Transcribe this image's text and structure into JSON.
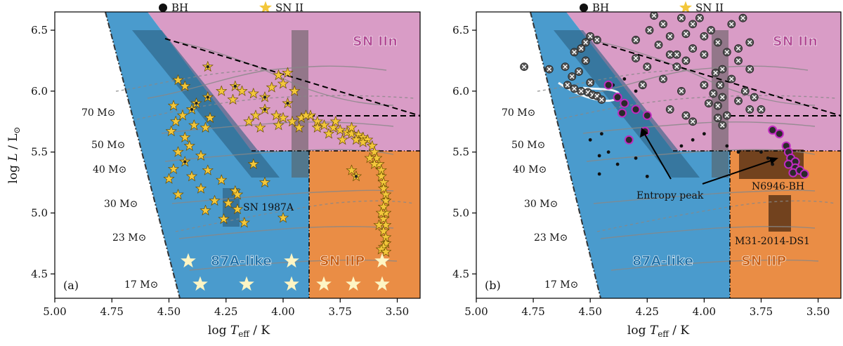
{
  "legend": {
    "bh": "BH",
    "sn": "SN II"
  },
  "colors": {
    "iin": "#d99cc6",
    "iip": "#ea8d45",
    "blue": "#4a9bcd",
    "bandDark": "#2c5f80",
    "star": "#f3c73b",
    "starEdge": "#6b4e00",
    "white_star": "#fdf5c4",
    "bh": "#111111",
    "bhWhite": "#555555",
    "magenta": "#c02bc0"
  },
  "chart_data": [
    {
      "type": "scatter",
      "panel_label": "(a)",
      "xlabel": "log T_eff / K",
      "ylabel": "log L / L⊙",
      "xlim": [
        5.0,
        3.4
      ],
      "ylim": [
        4.3,
        6.65
      ],
      "xticks": [
        "5.00",
        "4.75",
        "4.50",
        "4.25",
        "4.00",
        "3.75",
        "3.50"
      ],
      "yticks": [
        "4.5",
        "5.0",
        "5.5",
        "6.0",
        "6.5"
      ],
      "regions": [
        "SN IIn",
        "87A-like",
        "SN IIP"
      ],
      "track_masses": [
        "70 M⊙",
        "50 M⊙",
        "40 M⊙",
        "30 M⊙",
        "23 M⊙",
        "17 M⊙"
      ],
      "annotations": [
        "SN 1987A"
      ],
      "series": [
        {
          "name": "SN II",
          "points": [
            [
              4.33,
              6.2
            ],
            [
              4.46,
              6.09
            ],
            [
              4.43,
              6.04
            ],
            [
              4.27,
              6.0
            ],
            [
              4.33,
              5.95
            ],
            [
              4.22,
              5.93
            ],
            [
              4.38,
              5.9
            ],
            [
              4.48,
              5.88
            ],
            [
              4.4,
              5.85
            ],
            [
              4.44,
              5.8
            ],
            [
              4.32,
              5.78
            ],
            [
              4.47,
              5.75
            ],
            [
              4.39,
              5.72
            ],
            [
              4.34,
              5.7
            ],
            [
              4.49,
              5.67
            ],
            [
              4.43,
              5.62
            ],
            [
              4.41,
              5.55
            ],
            [
              4.46,
              5.5
            ],
            [
              4.36,
              5.47
            ],
            [
              4.43,
              5.42
            ],
            [
              4.48,
              5.36
            ],
            [
              4.33,
              5.35
            ],
            [
              4.4,
              5.3
            ],
            [
              4.5,
              5.28
            ],
            [
              4.27,
              5.27
            ],
            [
              4.36,
              5.2
            ],
            [
              4.21,
              5.18
            ],
            [
              4.46,
              5.15
            ],
            [
              4.3,
              5.1
            ],
            [
              4.24,
              5.08
            ],
            [
              4.2,
              5.03
            ],
            [
              4.34,
              5.02
            ],
            [
              4.26,
              4.95
            ],
            [
              4.17,
              4.92
            ],
            [
              4.2,
              5.15
            ],
            [
              4.13,
              5.4
            ],
            [
              4.08,
              5.25
            ],
            [
              4.0,
              4.96
            ],
            [
              4.21,
              6.04
            ],
            [
              4.18,
              6.0
            ],
            [
              4.13,
              5.98
            ],
            [
              4.08,
              5.95
            ],
            [
              4.05,
              6.03
            ],
            [
              4.0,
              6.06
            ],
            [
              3.95,
              6.0
            ],
            [
              3.98,
              5.9
            ],
            [
              4.08,
              5.85
            ],
            [
              4.03,
              5.8
            ],
            [
              4.0,
              5.78
            ],
            [
              4.12,
              5.8
            ],
            [
              4.15,
              5.75
            ],
            [
              4.1,
              5.7
            ],
            [
              4.02,
              5.72
            ],
            [
              3.96,
              5.75
            ],
            [
              3.92,
              5.78
            ],
            [
              3.88,
              5.8
            ],
            [
              3.85,
              5.75
            ],
            [
              3.82,
              5.72
            ],
            [
              3.78,
              5.7
            ],
            [
              3.75,
              5.68
            ],
            [
              3.72,
              5.66
            ],
            [
              3.7,
              5.65
            ],
            [
              3.67,
              5.64
            ],
            [
              3.65,
              5.62
            ],
            [
              3.63,
              5.6
            ],
            [
              3.61,
              5.55
            ],
            [
              3.6,
              5.5
            ],
            [
              3.59,
              5.45
            ],
            [
              3.58,
              5.4
            ],
            [
              3.57,
              5.35
            ],
            [
              3.57,
              5.3
            ],
            [
              3.56,
              5.25
            ],
            [
              3.56,
              5.2
            ],
            [
              3.55,
              5.15
            ],
            [
              3.55,
              5.1
            ],
            [
              3.56,
              5.05
            ],
            [
              3.55,
              5.0
            ],
            [
              3.56,
              4.95
            ],
            [
              3.55,
              4.9
            ],
            [
              3.56,
              4.85
            ],
            [
              3.55,
              4.8
            ],
            [
              3.55,
              4.75
            ],
            [
              3.56,
              4.72
            ],
            [
              3.57,
              4.7
            ],
            [
              3.55,
              4.68
            ],
            [
              3.58,
              4.9
            ],
            [
              3.57,
              5.0
            ],
            [
              3.6,
              5.4
            ],
            [
              3.62,
              5.45
            ],
            [
              3.65,
              5.58
            ],
            [
              3.68,
              5.6
            ],
            [
              3.7,
              5.7
            ],
            [
              3.74,
              5.6
            ],
            [
              3.8,
              5.65
            ],
            [
              3.85,
              5.7
            ],
            [
              3.93,
              5.7
            ],
            [
              4.02,
              6.13
            ],
            [
              3.98,
              6.15
            ],
            [
              3.68,
              5.3
            ],
            [
              3.7,
              5.35
            ],
            [
              3.9,
              5.8
            ],
            [
              3.77,
              5.75
            ]
          ]
        }
      ]
    },
    {
      "type": "scatter",
      "panel_label": "(b)",
      "xlabel": "log T_eff / K",
      "ylabel": "log L / L⊙",
      "xlim": [
        5.0,
        3.4
      ],
      "ylim": [
        4.3,
        6.65
      ],
      "xticks": [
        "5.00",
        "4.75",
        "4.50",
        "4.25",
        "4.00",
        "3.75",
        "3.50"
      ],
      "yticks": [
        "4.5",
        "5.0",
        "5.5",
        "6.0",
        "6.5"
      ],
      "regions": [
        "SN IIn",
        "87A-like",
        "SN IIP"
      ],
      "track_masses": [
        "70 M⊙",
        "50 M⊙",
        "40 M⊙",
        "30 M⊙",
        "23 M⊙",
        "17 M⊙"
      ],
      "annotations": [
        "Entropy peak",
        "N6946-BH",
        "M31-2014-DS1"
      ],
      "series": [
        {
          "name": "BH (crossed)",
          "points": [
            [
              4.79,
              6.2
            ],
            [
              4.68,
              6.18
            ],
            [
              4.61,
              6.2
            ],
            [
              4.58,
              6.12
            ],
            [
              4.55,
              6.16
            ],
            [
              4.6,
              6.05
            ],
            [
              4.57,
              6.02
            ],
            [
              4.54,
              6.0
            ],
            [
              4.51,
              5.99
            ],
            [
              4.49,
              5.97
            ],
            [
              4.47,
              5.96
            ],
            [
              4.45,
              5.93
            ],
            [
              4.5,
              6.07
            ],
            [
              4.57,
              6.32
            ],
            [
              4.54,
              6.35
            ],
            [
              4.52,
              6.4
            ],
            [
              4.5,
              6.45
            ],
            [
              4.47,
              6.42
            ],
            [
              4.52,
              6.25
            ],
            [
              4.3,
              6.27
            ],
            [
              4.25,
              6.2
            ],
            [
              4.27,
              6.05
            ],
            [
              4.18,
              6.1
            ],
            [
              4.15,
              6.3
            ],
            [
              4.12,
              6.2
            ],
            [
              4.08,
              6.47
            ],
            [
              4.1,
              6.6
            ],
            [
              4.05,
              6.55
            ],
            [
              4.02,
              6.6
            ],
            [
              4.0,
              6.45
            ],
            [
              3.97,
              6.5
            ],
            [
              3.94,
              6.4
            ],
            [
              3.9,
              6.32
            ],
            [
              3.85,
              6.35
            ],
            [
              3.8,
              6.4
            ],
            [
              3.85,
              6.25
            ],
            [
              3.8,
              6.18
            ],
            [
              3.88,
              6.1
            ],
            [
              3.82,
              6.0
            ],
            [
              3.92,
              5.95
            ],
            [
              3.93,
              6.05
            ],
            [
              3.95,
              6.15
            ],
            [
              4.05,
              6.35
            ],
            [
              4.08,
              6.25
            ],
            [
              4.15,
              6.45
            ],
            [
              4.2,
              6.38
            ],
            [
              4.18,
              6.55
            ],
            [
              4.22,
              6.62
            ],
            [
              4.0,
              6.05
            ],
            [
              3.96,
              5.98
            ],
            [
              3.98,
              5.9
            ],
            [
              3.94,
              5.88
            ],
            [
              3.85,
              5.92
            ],
            [
              3.8,
              5.85
            ],
            [
              3.75,
              5.85
            ],
            [
              3.78,
              5.95
            ],
            [
              3.92,
              6.18
            ],
            [
              3.9,
              5.8
            ],
            [
              3.94,
              5.78
            ],
            [
              3.92,
              5.72
            ],
            [
              4.15,
              5.85
            ],
            [
              4.08,
              5.8
            ],
            [
              4.05,
              5.75
            ],
            [
              4.1,
              6.0
            ],
            [
              3.88,
              6.55
            ],
            [
              3.83,
              6.6
            ],
            [
              4.24,
              6.5
            ],
            [
              4.12,
              6.3
            ],
            [
              4.0,
              6.3
            ],
            [
              4.3,
              6.42
            ]
          ]
        },
        {
          "name": "BH",
          "points": [
            [
              4.5,
              5.6
            ],
            [
              4.45,
              5.65
            ],
            [
              4.42,
              5.5
            ],
            [
              4.46,
              5.47
            ],
            [
              4.38,
              5.4
            ],
            [
              4.46,
              5.32
            ],
            [
              4.3,
              5.45
            ],
            [
              4.25,
              5.3
            ],
            [
              4.1,
              5.55
            ],
            [
              4.05,
              5.6
            ],
            [
              4.0,
              5.65
            ],
            [
              3.9,
              5.55
            ],
            [
              3.85,
              5.5
            ],
            [
              3.75,
              5.5
            ],
            [
              3.72,
              5.45
            ],
            [
              3.7,
              5.4
            ],
            [
              4.4,
              6.05
            ],
            [
              4.35,
              6.1
            ],
            [
              4.3,
              6.0
            ]
          ]
        },
        {
          "name": "BH (entropy peak)",
          "points": [
            [
              4.42,
              6.05
            ],
            [
              4.38,
              5.95
            ],
            [
              4.35,
              5.9
            ],
            [
              4.36,
              5.82
            ],
            [
              4.3,
              5.85
            ],
            [
              4.25,
              5.8
            ],
            [
              4.26,
              5.67
            ],
            [
              4.33,
              5.6
            ],
            [
              3.7,
              5.68
            ],
            [
              3.67,
              5.65
            ],
            [
              3.64,
              5.55
            ],
            [
              3.63,
              5.5
            ],
            [
              3.62,
              5.45
            ],
            [
              3.6,
              5.42
            ],
            [
              3.6,
              5.37
            ],
            [
              3.61,
              5.33
            ],
            [
              3.58,
              5.35
            ],
            [
              3.56,
              5.32
            ],
            [
              3.63,
              5.4
            ]
          ]
        }
      ]
    }
  ]
}
